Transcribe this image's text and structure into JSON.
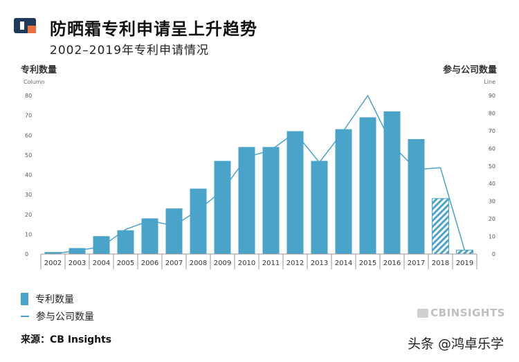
{
  "header": {
    "title": "防晒霜专利申请呈上升趋势",
    "subtitle": "2002–2019年专利申请情况"
  },
  "legend": {
    "bar_label": "专利数量",
    "line_label": "参与公司数量"
  },
  "source": "来源：CB Insights",
  "brand": "CBINSIGHTS",
  "watermark": "头条 @鸿卓乐学",
  "colors": {
    "bar": "#4aa3c8",
    "line": "#4aa3c8",
    "axis": "#999999",
    "logo_dark": "#1f3a5a",
    "logo_accent": "#e8703a"
  },
  "chart_data": {
    "type": "bar",
    "categories": [
      "2002",
      "2003",
      "2004",
      "2005",
      "2006",
      "2007",
      "2008",
      "2009",
      "2010",
      "2011",
      "2012",
      "2013",
      "2014",
      "2015",
      "2016",
      "2017",
      "2018",
      "2019"
    ],
    "series": [
      {
        "name": "专利数量",
        "type": "bar",
        "axis": "left",
        "values": [
          1,
          3,
          9,
          12,
          18,
          23,
          33,
          47,
          54,
          54,
          62,
          47,
          63,
          69,
          72,
          58,
          28,
          2
        ],
        "hatched": [
          "2018",
          "2019"
        ]
      },
      {
        "name": "参与公司数量",
        "type": "line",
        "axis": "right",
        "values": [
          0,
          2,
          4,
          14,
          19,
          16,
          25,
          36,
          55,
          59,
          69,
          52,
          70,
          90,
          62,
          48,
          49,
          2
        ]
      }
    ],
    "y_left": {
      "label": "专利数量",
      "sublabel": "Column",
      "min": 0,
      "max": 80,
      "ticks": [
        0,
        10,
        20,
        30,
        40,
        50,
        60,
        70,
        80
      ]
    },
    "y_right": {
      "label": "参与公司数量",
      "sublabel": "Line",
      "min": 0,
      "max": 90,
      "ticks": [
        0,
        10,
        20,
        30,
        40,
        50,
        60,
        70,
        80,
        90
      ]
    },
    "grid": false,
    "legend_position": "bottom-left"
  }
}
